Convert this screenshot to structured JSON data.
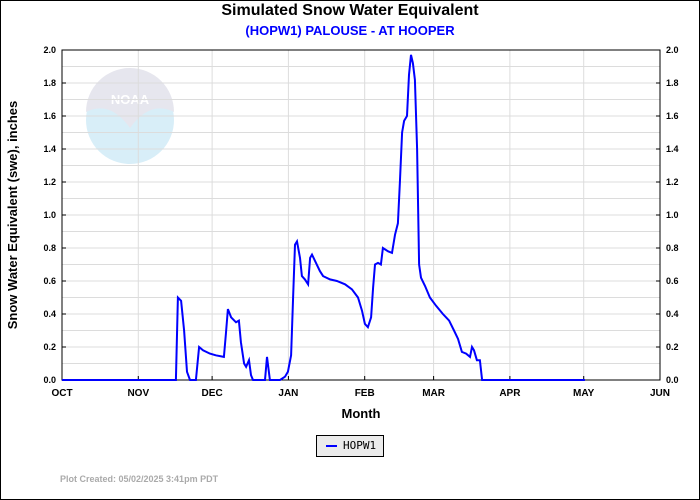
{
  "chart_data": {
    "type": "line",
    "title": "Simulated Snow Water Equivalent",
    "subtitle": "(HOPW1) PALOUSE - AT HOOPER",
    "xlabel": "Month",
    "ylabel": "Snow Water Equivalent (swe),  inches",
    "x_units": "days since Oct 1",
    "xlim": [
      0,
      243
    ],
    "ylim": [
      0,
      2.0
    ],
    "grid": true,
    "x_ticks": [
      {
        "label": "OCT",
        "day": 0
      },
      {
        "label": "NOV",
        "day": 31
      },
      {
        "label": "DEC",
        "day": 61
      },
      {
        "label": "JAN",
        "day": 92
      },
      {
        "label": "FEB",
        "day": 123
      },
      {
        "label": "MAR",
        "day": 151
      },
      {
        "label": "APR",
        "day": 182
      },
      {
        "label": "MAY",
        "day": 212
      },
      {
        "label": "JUN",
        "day": 243
      }
    ],
    "y_ticks": [
      "0.0",
      "0.2",
      "0.4",
      "0.6",
      "0.8",
      "1.0",
      "1.2",
      "1.4",
      "1.6",
      "1.8",
      "2.0"
    ],
    "legend": {
      "position": "bottom-center",
      "entries": [
        "HOPW1"
      ]
    },
    "series": [
      {
        "name": "HOPW1",
        "color": "#0000ff",
        "x": [
          0,
          46.3,
          47.1,
          48.4,
          49.6,
          50.8,
          52.0,
          54.4,
          55.7,
          57.3,
          60.1,
          62.5,
          65.8,
          66.6,
          67.4,
          68.7,
          70.7,
          71.9,
          72.7,
          74.0,
          74.8,
          76.0,
          76.8,
          77.6,
          82.5,
          83.3,
          84.5,
          88.6,
          90.6,
          91.8,
          93.1,
          93.9,
          94.7,
          95.5,
          96.7,
          97.5,
          98.7,
          100.0,
          100.8,
          101.6,
          104.8,
          106.1,
          108.9,
          111.7,
          115.0,
          117.8,
          120.3,
          121.9,
          123.1,
          124.3,
          125.6,
          126.4,
          127.2,
          128.4,
          129.6,
          130.4,
          132.5,
          134.1,
          135.3,
          136.5,
          137.3,
          138.2,
          139.0,
          140.2,
          141.0,
          141.8,
          142.6,
          143.4,
          144.3,
          145.1,
          145.9,
          147.5,
          149.5,
          152.0,
          154.8,
          157.3,
          159.3,
          160.9,
          162.5,
          164.2,
          165.8,
          166.6,
          167.4,
          168.6,
          169.8,
          170.7,
          212.5
        ],
        "y": [
          0,
          0,
          0.5,
          0.48,
          0.3,
          0.05,
          0,
          0,
          0.2,
          0.18,
          0.16,
          0.15,
          0.14,
          0.28,
          0.43,
          0.38,
          0.35,
          0.36,
          0.23,
          0.1,
          0.08,
          0.12,
          0.03,
          0,
          0,
          0.14,
          0,
          0,
          0.02,
          0.05,
          0.15,
          0.5,
          0.82,
          0.84,
          0.74,
          0.63,
          0.61,
          0.58,
          0.74,
          0.76,
          0.66,
          0.63,
          0.61,
          0.6,
          0.58,
          0.55,
          0.5,
          0.42,
          0.34,
          0.32,
          0.38,
          0.56,
          0.7,
          0.71,
          0.7,
          0.8,
          0.78,
          0.77,
          0.88,
          0.95,
          1.2,
          1.5,
          1.57,
          1.6,
          1.85,
          1.97,
          1.92,
          1.82,
          1.4,
          0.7,
          0.62,
          0.57,
          0.5,
          0.45,
          0.4,
          0.36,
          0.3,
          0.25,
          0.17,
          0.16,
          0.14,
          0.2,
          0.18,
          0.12,
          0.12,
          0,
          0
        ]
      }
    ]
  },
  "footer": {
    "created": "Plot Created: 05/02/2025 3:41pm PDT"
  },
  "logo": {
    "text": "NOAA"
  }
}
